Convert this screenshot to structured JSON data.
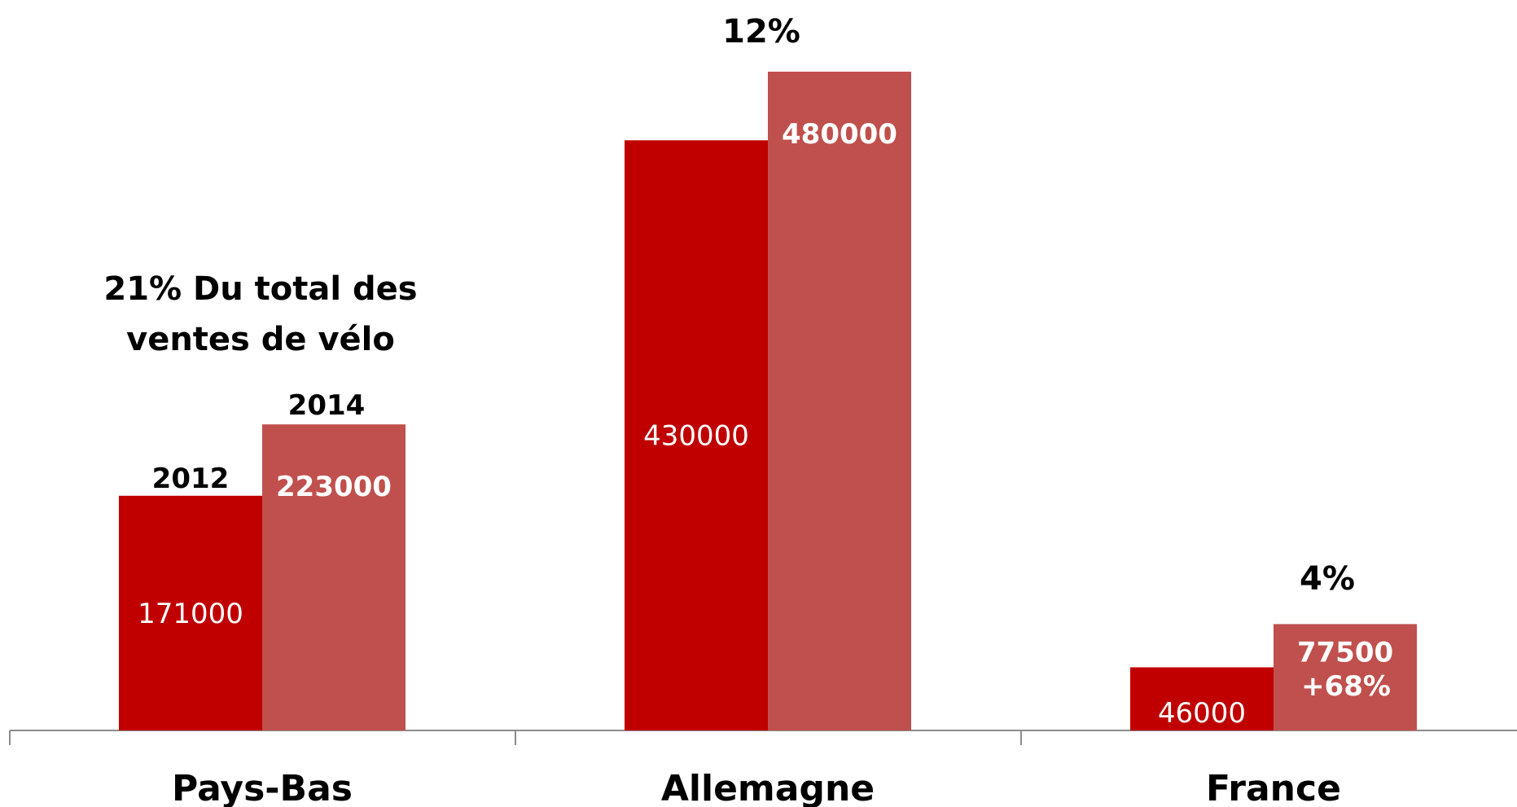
{
  "chart_data": {
    "type": "bar",
    "categories": [
      "Pays-Bas",
      "Allemagne",
      "France"
    ],
    "series": [
      {
        "name": "2012",
        "values": [
          171000,
          430000,
          46000
        ],
        "color": "#c00000"
      },
      {
        "name": "2014",
        "values": [
          223000,
          480000,
          77500
        ],
        "color": "#c0504d"
      }
    ],
    "data_labels": {
      "2012": [
        "171000",
        "430000",
        "46000"
      ],
      "2014": [
        "223000",
        "480000",
        "77500"
      ]
    },
    "growth_label": "+68%",
    "annotations": {
      "pays_bas_share_line1": "21% Du total des",
      "pays_bas_share_line2": "ventes de vélo",
      "allemagne_share": "12%",
      "france_share": "4%"
    },
    "ylim": [
      0,
      480000
    ],
    "grid": false,
    "legend": "none",
    "xlabel": "",
    "ylabel": ""
  }
}
